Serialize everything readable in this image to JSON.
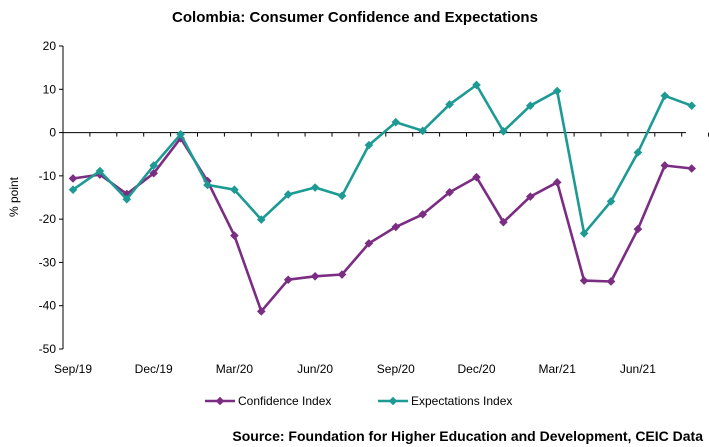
{
  "chart_data": {
    "type": "line",
    "title": "Colombia: Consumer Confidence and Expectations",
    "ylabel": "% point",
    "xlabel": "",
    "ylim": [
      -50,
      20
    ],
    "yticks": [
      "20",
      "10",
      "0",
      "-10",
      "-20",
      "-30",
      "-40",
      "-50"
    ],
    "x_tick_labels": [
      "Sep/19",
      "Dec/19",
      "Mar/20",
      "Jun/20",
      "Sep/20",
      "Dec/20",
      "Mar/21",
      "Jun/21"
    ],
    "x": [
      "Sep/19",
      "Oct/19",
      "Nov/19",
      "Dec/19",
      "Jan/20",
      "Feb/20",
      "Mar/20",
      "Apr/20",
      "May/20",
      "Jun/20",
      "Jul/20",
      "Aug/20",
      "Sep/20",
      "Oct/20",
      "Nov/20",
      "Dec/20",
      "Jan/21",
      "Feb/21",
      "Mar/21",
      "Apr/21",
      "May/21",
      "Jun/21",
      "Jul/21",
      "Aug/21"
    ],
    "series": [
      {
        "name": "Confidence Index",
        "color": "#7B2C83",
        "values": [
          -10.6,
          -9.7,
          -14.2,
          -9.4,
          -1.3,
          -11.2,
          -23.8,
          -41.3,
          -34.0,
          -33.2,
          -32.8,
          -25.6,
          -21.8,
          -18.9,
          -13.8,
          -10.3,
          -20.7,
          -14.8,
          -11.5,
          -34.2,
          -34.4,
          -22.3,
          -7.6,
          -8.3
        ]
      },
      {
        "name": "Expectations Index",
        "color": "#1D9A94",
        "values": [
          -13.2,
          -8.9,
          -15.4,
          -7.6,
          -0.4,
          -12.1,
          -13.2,
          -20.1,
          -14.3,
          -12.7,
          -14.6,
          -2.9,
          2.4,
          0.4,
          6.5,
          11.0,
          0.3,
          6.2,
          9.6,
          -23.3,
          -15.9,
          -4.6,
          8.5,
          6.2
        ]
      }
    ],
    "legend_position": "bottom",
    "grid": false
  },
  "source": "Source: Foundation for Higher Education and Development, CEIC Data"
}
